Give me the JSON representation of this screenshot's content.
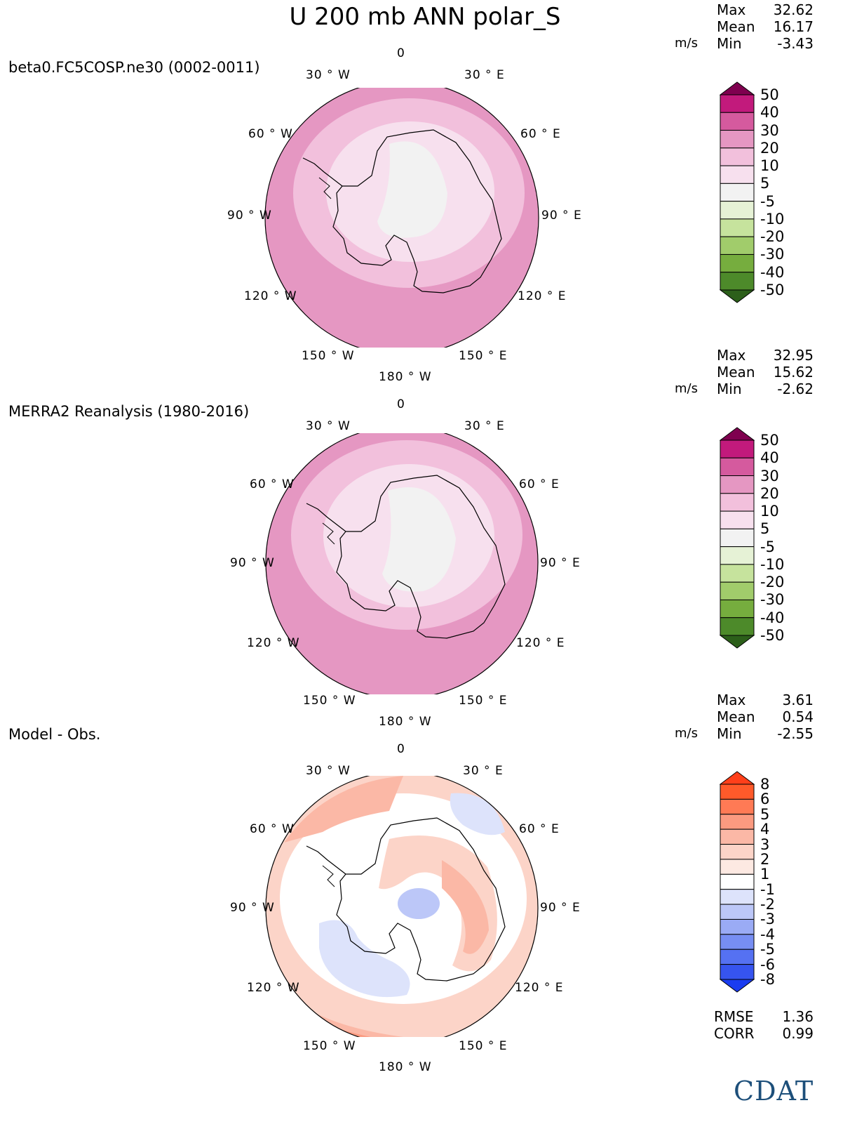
{
  "title": "U 200 mb ANN polar_S",
  "units": "m/s",
  "stat_labels": {
    "max": "Max",
    "mean": "Mean",
    "min": "Min"
  },
  "panels": [
    {
      "label": "beta0.FC5COSP.ne30 (0002-0011)",
      "stats": {
        "max": "32.62",
        "mean": "16.17",
        "min": "-3.43"
      },
      "colorbar": {
        "levels": [
          "50",
          "40",
          "30",
          "20",
          "10",
          "5",
          "-5",
          "-10",
          "-20",
          "-30",
          "-40",
          "-50"
        ],
        "colors": [
          "#7f004f",
          "#c21a7c",
          "#d55a9e",
          "#e597c2",
          "#f2c0dc",
          "#f7e0ee",
          "#f2f2f2",
          "#e6f2d6",
          "#c6e39d",
          "#a1cc6b",
          "#76ad3e",
          "#4d8a2a",
          "#2c5f1a"
        ]
      }
    },
    {
      "label": "MERRA2 Reanalysis (1980-2016)",
      "stats": {
        "max": "32.95",
        "mean": "15.62",
        "min": "-2.62"
      },
      "colorbar": {
        "levels": [
          "50",
          "40",
          "30",
          "20",
          "10",
          "5",
          "-5",
          "-10",
          "-20",
          "-30",
          "-40",
          "-50"
        ],
        "colors": [
          "#7f004f",
          "#c21a7c",
          "#d55a9e",
          "#e597c2",
          "#f2c0dc",
          "#f7e0ee",
          "#f2f2f2",
          "#e6f2d6",
          "#c6e39d",
          "#a1cc6b",
          "#76ad3e",
          "#4d8a2a",
          "#2c5f1a"
        ]
      }
    },
    {
      "label": "Model - Obs.",
      "stats": {
        "max": "3.61",
        "mean": "0.54",
        "min": "-2.55"
      },
      "colorbar": {
        "levels": [
          "8",
          "6",
          "5",
          "4",
          "3",
          "2",
          "1",
          "-1",
          "-2",
          "-3",
          "-4",
          "-5",
          "-6",
          "-8"
        ],
        "colors": [
          "#ff3f1a",
          "#ff5a2a",
          "#ff7a55",
          "#fb9a80",
          "#fbb8a6",
          "#fcd4c8",
          "#fde9e2",
          "#ffffff",
          "#dde3fb",
          "#bcc7f8",
          "#9aabf5",
          "#778ef3",
          "#5571f2",
          "#3654ef",
          "#1a3cf0"
        ]
      }
    }
  ],
  "longitude_labels": {
    "top": "0",
    "n30w": "30 ° W",
    "n30e": "30 ° E",
    "n60w": "60 ° W",
    "n60e": "60 ° E",
    "n90w": "90 ° W",
    "n90e": "90 ° E",
    "n120w": "120 ° W",
    "n120e": "120 ° E",
    "n150w": "150 ° W",
    "n150e": "150 ° E",
    "bottom": "180 ° W"
  },
  "metrics": {
    "rmse_label": "RMSE",
    "rmse": "1.36",
    "corr_label": "CORR",
    "corr": "0.99"
  },
  "logo": {
    "text": "CDAT"
  }
}
